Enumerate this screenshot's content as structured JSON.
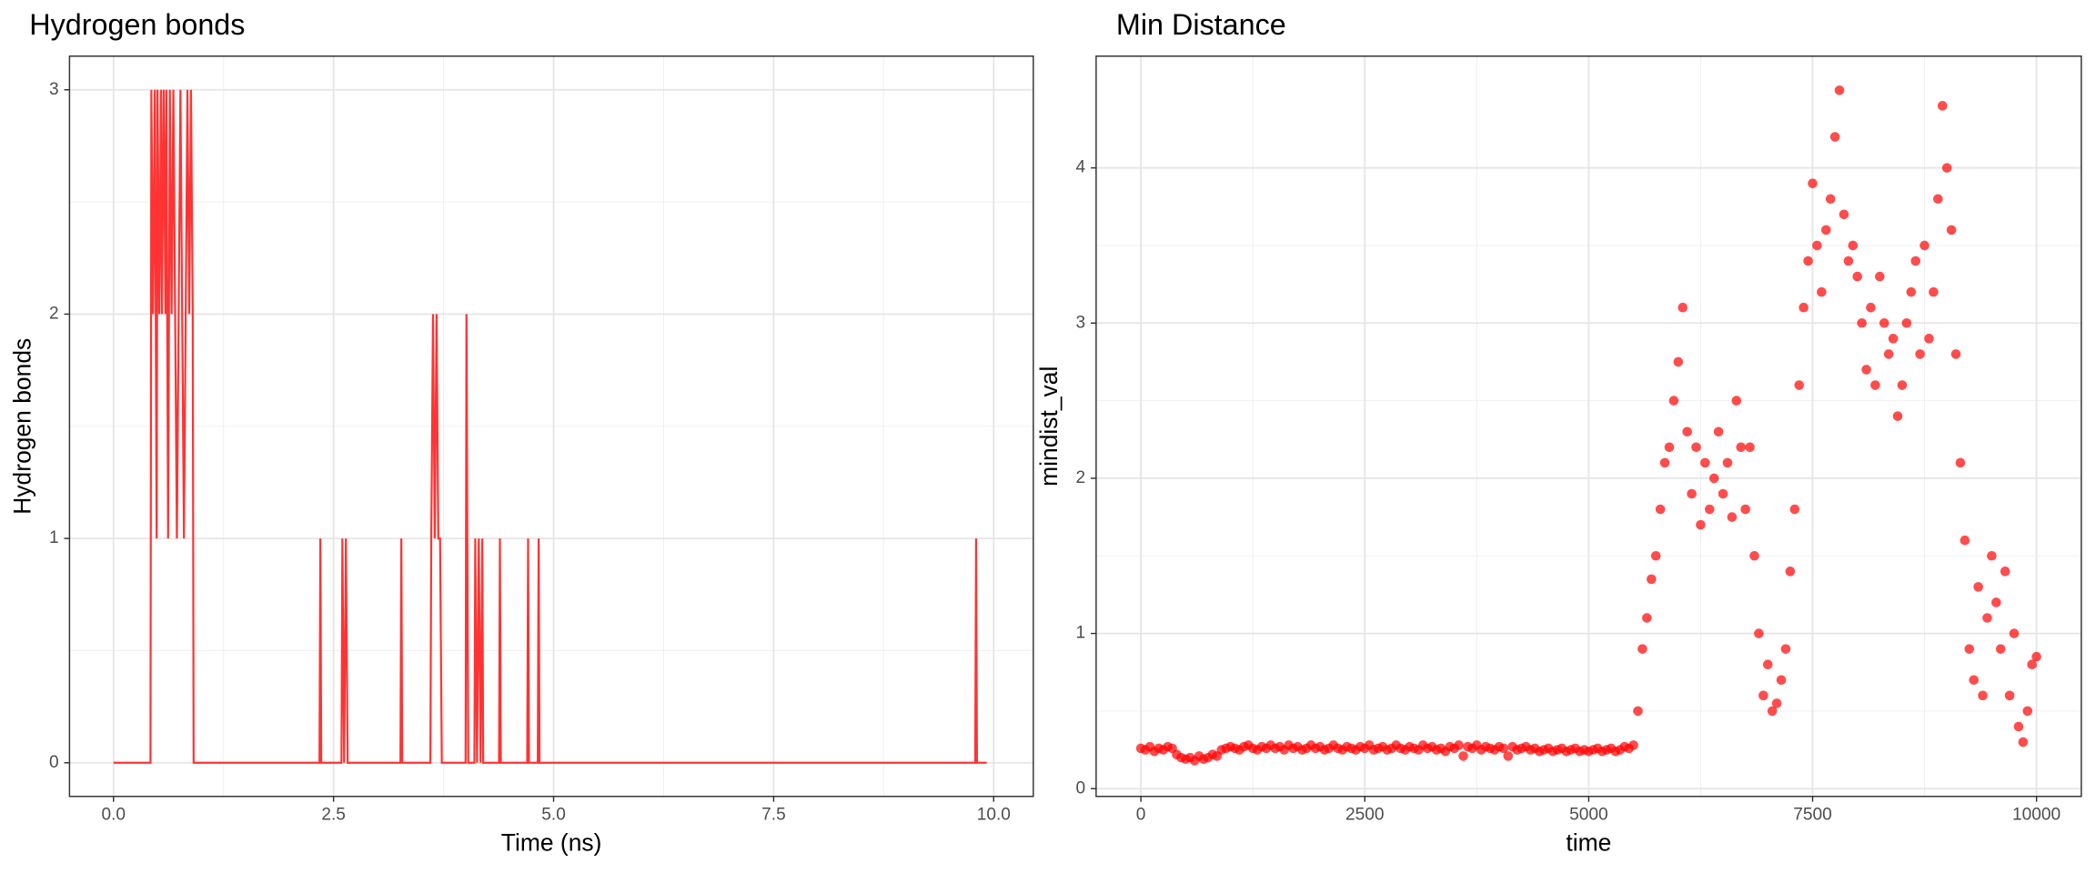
{
  "chart_data": [
    {
      "type": "line",
      "title": "Hydrogen bonds",
      "x_label": "Time (ns)",
      "y_label": "Hydrogen bonds",
      "color": "#ff3333",
      "x": [
        0,
        0.42,
        0.43,
        0.45,
        0.47,
        0.49,
        0.5,
        0.52,
        0.54,
        0.55,
        0.57,
        0.59,
        0.6,
        0.62,
        0.64,
        0.66,
        0.68,
        0.7,
        0.72,
        0.74,
        0.76,
        0.78,
        0.8,
        0.82,
        0.84,
        0.86,
        0.88,
        0.9,
        0.91,
        2.34,
        2.35,
        2.36,
        2.59,
        2.6,
        2.62,
        2.64,
        2.66,
        3.26,
        3.27,
        3.28,
        3.6,
        3.61,
        3.63,
        3.65,
        3.67,
        3.69,
        3.71,
        3.73,
        4.0,
        4.01,
        4.02,
        4.03,
        4.1,
        4.11,
        4.13,
        4.15,
        4.17,
        4.19,
        4.2,
        4.38,
        4.39,
        4.4,
        4.7,
        4.71,
        4.72,
        4.82,
        4.83,
        4.84,
        9.79,
        9.8,
        9.81,
        9.92
      ],
      "values": [
        0,
        0,
        3,
        2,
        3,
        1,
        3,
        2,
        3,
        2,
        3,
        2,
        3,
        1,
        3,
        2,
        3,
        2,
        1,
        2,
        3,
        2,
        1,
        2,
        3,
        2,
        3,
        2,
        0,
        0,
        1,
        0,
        0,
        1,
        0,
        1,
        0,
        0,
        1,
        0,
        0,
        1,
        2,
        1,
        2,
        1,
        1,
        0,
        0,
        2,
        1,
        0,
        0,
        1,
        0,
        1,
        0,
        1,
        0,
        0,
        1,
        0,
        0,
        1,
        0,
        0,
        1,
        0,
        0,
        1,
        0,
        0
      ],
      "xlim": [
        -0.5,
        10.45
      ],
      "ylim": [
        -0.15,
        3.15
      ],
      "xticks": [
        {
          "value": 0,
          "label": "0.0"
        },
        2.5,
        {
          "value": 5,
          "label": "5.0"
        },
        7.5,
        {
          "value": 10,
          "label": "10.0"
        }
      ],
      "yticks": [
        0,
        1,
        2,
        3
      ],
      "grid": true
    },
    {
      "type": "scatter",
      "title": "Min Distance",
      "x_label": "time",
      "y_label": "mindist_val",
      "color": "#ff0000",
      "alpha": 0.7,
      "x": [
        0,
        50,
        100,
        150,
        200,
        250,
        300,
        350,
        400,
        450,
        500,
        550,
        600,
        650,
        700,
        750,
        800,
        850,
        900,
        950,
        1000,
        1050,
        1100,
        1150,
        1200,
        1250,
        1300,
        1350,
        1400,
        1450,
        1500,
        1550,
        1600,
        1650,
        1700,
        1750,
        1800,
        1850,
        1900,
        1950,
        2000,
        2050,
        2100,
        2150,
        2200,
        2250,
        2300,
        2350,
        2400,
        2450,
        2500,
        2550,
        2600,
        2650,
        2700,
        2750,
        2800,
        2850,
        2900,
        2950,
        3000,
        3050,
        3100,
        3150,
        3200,
        3250,
        3300,
        3350,
        3400,
        3450,
        3500,
        3550,
        3600,
        3650,
        3700,
        3750,
        3800,
        3850,
        3900,
        3950,
        4000,
        4050,
        4100,
        4150,
        4200,
        4250,
        4300,
        4350,
        4400,
        4450,
        4500,
        4550,
        4600,
        4650,
        4700,
        4750,
        4800,
        4850,
        4900,
        4950,
        5000,
        5050,
        5100,
        5150,
        5200,
        5250,
        5300,
        5350,
        5400,
        5450,
        5500,
        5550,
        5600,
        5650,
        5700,
        5750,
        5800,
        5850,
        5900,
        5950,
        6000,
        6050,
        6100,
        6150,
        6200,
        6250,
        6300,
        6350,
        6400,
        6450,
        6500,
        6550,
        6600,
        6650,
        6700,
        6750,
        6800,
        6850,
        6900,
        6950,
        7000,
        7050,
        7100,
        7150,
        7200,
        7250,
        7300,
        7350,
        7400,
        7450,
        7500,
        7550,
        7600,
        7650,
        7700,
        7750,
        7800,
        7850,
        7900,
        7950,
        8000,
        8050,
        8100,
        8150,
        8200,
        8250,
        8300,
        8350,
        8400,
        8450,
        8500,
        8550,
        8600,
        8650,
        8700,
        8750,
        8800,
        8850,
        8900,
        8950,
        9000,
        9050,
        9100,
        9150,
        9200,
        9250,
        9300,
        9350,
        9400,
        9450,
        9500,
        9550,
        9600,
        9650,
        9700,
        9750,
        9800,
        9850,
        9900,
        9950,
        10000
      ],
      "values": [
        0.26,
        0.25,
        0.27,
        0.24,
        0.26,
        0.25,
        0.27,
        0.26,
        0.22,
        0.2,
        0.19,
        0.2,
        0.18,
        0.21,
        0.19,
        0.2,
        0.22,
        0.21,
        0.25,
        0.26,
        0.27,
        0.26,
        0.25,
        0.27,
        0.28,
        0.26,
        0.25,
        0.27,
        0.26,
        0.28,
        0.26,
        0.27,
        0.25,
        0.28,
        0.26,
        0.27,
        0.25,
        0.26,
        0.28,
        0.26,
        0.27,
        0.25,
        0.26,
        0.28,
        0.26,
        0.25,
        0.27,
        0.26,
        0.25,
        0.27,
        0.26,
        0.28,
        0.25,
        0.26,
        0.27,
        0.25,
        0.26,
        0.28,
        0.26,
        0.25,
        0.27,
        0.26,
        0.25,
        0.28,
        0.26,
        0.27,
        0.25,
        0.26,
        0.24,
        0.27,
        0.26,
        0.28,
        0.21,
        0.27,
        0.26,
        0.28,
        0.25,
        0.27,
        0.26,
        0.25,
        0.27,
        0.26,
        0.21,
        0.27,
        0.25,
        0.26,
        0.27,
        0.25,
        0.26,
        0.24,
        0.25,
        0.26,
        0.24,
        0.25,
        0.26,
        0.24,
        0.25,
        0.26,
        0.24,
        0.25,
        0.24,
        0.25,
        0.26,
        0.24,
        0.25,
        0.26,
        0.24,
        0.25,
        0.27,
        0.26,
        0.28,
        0.5,
        0.9,
        1.1,
        1.35,
        1.5,
        1.8,
        2.1,
        2.2,
        2.5,
        2.75,
        3.1,
        2.3,
        1.9,
        2.2,
        1.7,
        2.1,
        1.8,
        2.0,
        2.3,
        1.9,
        2.1,
        1.75,
        2.5,
        2.2,
        1.8,
        2.2,
        1.5,
        1.0,
        0.6,
        0.8,
        0.5,
        0.55,
        0.7,
        0.9,
        1.4,
        1.8,
        2.6,
        3.1,
        3.4,
        3.9,
        3.5,
        3.2,
        3.6,
        3.8,
        4.2,
        4.5,
        3.7,
        3.4,
        3.5,
        3.3,
        3.0,
        2.7,
        3.1,
        2.6,
        3.3,
        3.0,
        2.8,
        2.9,
        2.4,
        2.6,
        3.0,
        3.2,
        3.4,
        2.8,
        3.5,
        2.9,
        3.2,
        3.8,
        4.4,
        4.0,
        3.6,
        2.8,
        2.1,
        1.6,
        0.9,
        0.7,
        1.3,
        0.6,
        1.1,
        1.5,
        1.2,
        0.9,
        1.4,
        0.6,
        1.0,
        0.4,
        0.3,
        0.5,
        0.8,
        0.85
      ],
      "xlim": [
        -500,
        10500
      ],
      "ylim": [
        -0.05,
        4.72
      ],
      "xticks": [
        0,
        2500,
        5000,
        7500,
        10000
      ],
      "yticks": [
        0,
        1,
        2,
        3,
        4
      ],
      "grid": true
    }
  ]
}
